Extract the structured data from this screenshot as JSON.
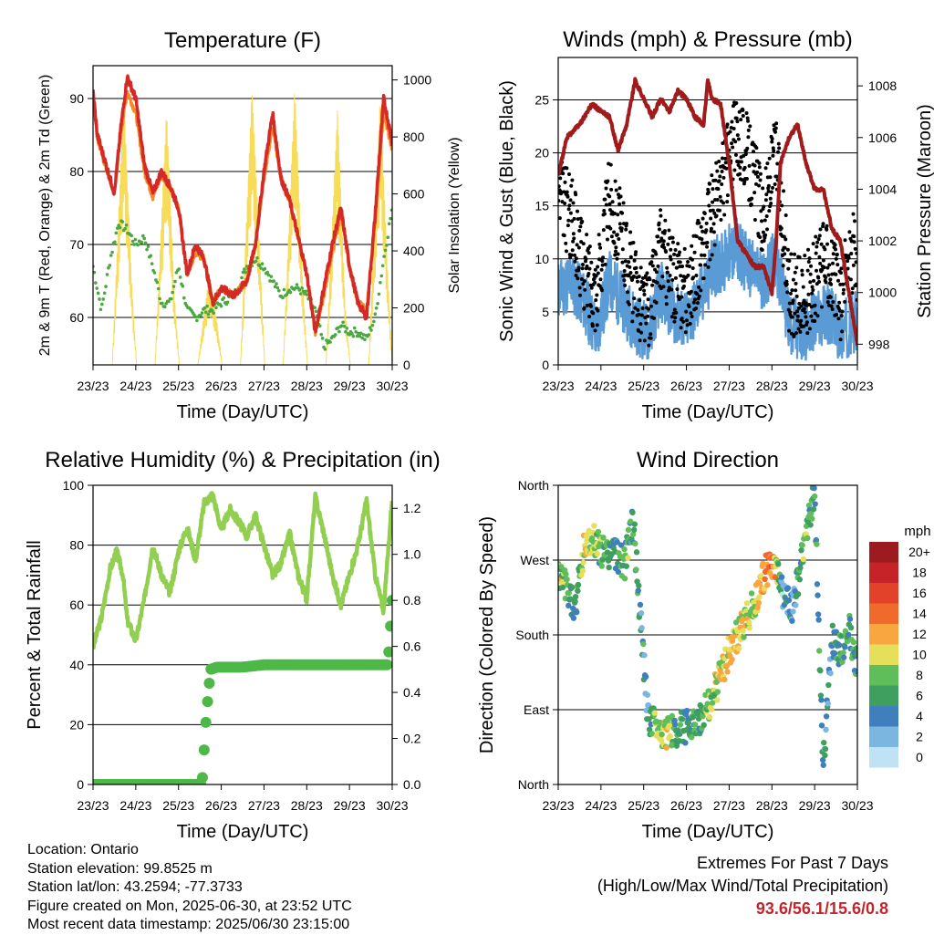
{
  "chart_data": [
    {
      "type": "line",
      "title": "Temperature (F)",
      "xlabel": "Time (Day/UTC)",
      "ylabel": "2m & 9m T (Red, Orange) & 2m Td (Green)",
      "ylabel_right": "Solar Insolation (Yellow)",
      "x_ticks": [
        "23/23",
        "24/23",
        "25/23",
        "26/23",
        "27/23",
        "28/23",
        "29/23",
        "30/23"
      ],
      "ylim": [
        53.5,
        94.5
      ],
      "y_ticks": [
        60,
        70,
        80,
        90
      ],
      "y2lim": [
        0,
        1050
      ],
      "y2_ticks": [
        0,
        200,
        400,
        600,
        800,
        1000
      ],
      "grid": "horizontal",
      "series": [
        {
          "role": "2m T",
          "axis": "left",
          "color": "#d42a26",
          "x": [
            0,
            0.1,
            0.3,
            0.5,
            0.65,
            0.8,
            1.0,
            1.2,
            1.4,
            1.6,
            1.8,
            2.0,
            2.2,
            2.4,
            2.6,
            2.8,
            3.0,
            3.3,
            3.6,
            3.8,
            4.0,
            4.2,
            4.4,
            4.6,
            4.8,
            5.0,
            5.2,
            5.4,
            5.6,
            5.8,
            6.0,
            6.2,
            6.4,
            6.6,
            6.8,
            7.0
          ],
          "values": [
            91,
            85,
            81,
            77,
            86,
            93,
            90,
            81,
            77,
            80,
            78,
            75,
            66,
            70,
            68,
            62,
            64,
            63,
            65,
            70,
            80,
            88,
            79,
            76,
            71,
            66,
            58,
            64,
            70,
            75,
            67,
            62,
            60,
            74,
            90,
            84
          ]
        },
        {
          "role": "9m T",
          "axis": "left",
          "color": "#f38a2a",
          "x": [
            0,
            0.1,
            0.3,
            0.5,
            0.65,
            0.8,
            1.0,
            1.2,
            1.4,
            1.6,
            1.8,
            2.0,
            2.2,
            2.4,
            2.6,
            2.8,
            3.0,
            3.3,
            3.6,
            3.8,
            4.0,
            4.2,
            4.4,
            4.6,
            4.8,
            5.0,
            5.2,
            5.4,
            5.6,
            5.8,
            6.0,
            6.2,
            6.4,
            6.6,
            6.8,
            7.0
          ],
          "values": [
            90.5,
            84.5,
            80.5,
            77,
            85,
            91,
            88,
            80,
            76.5,
            79.5,
            78,
            75,
            66,
            69,
            68,
            62,
            64,
            63,
            65,
            70,
            79,
            86,
            79,
            76,
            71,
            66,
            58,
            63,
            69,
            74,
            67,
            62,
            61,
            73,
            88,
            83
          ]
        },
        {
          "role": "2m Td",
          "axis": "left",
          "color": "#4aa83f",
          "x": [
            0,
            0.2,
            0.4,
            0.6,
            0.8,
            1.0,
            1.2,
            1.4,
            1.6,
            1.8,
            2.0,
            2.2,
            2.4,
            2.6,
            2.8,
            3.0,
            3.3,
            3.6,
            3.8,
            4.0,
            4.2,
            4.4,
            4.6,
            4.8,
            5.0,
            5.2,
            5.4,
            5.6,
            5.8,
            6.0,
            6.2,
            6.4,
            6.6,
            6.8,
            7.0
          ],
          "values": [
            67,
            61,
            68,
            73,
            72,
            70,
            71,
            67,
            62,
            62,
            67,
            61,
            60,
            61,
            61,
            62,
            63,
            67,
            68,
            67,
            65,
            63,
            64,
            64,
            63,
            61,
            56,
            57,
            59,
            58,
            58,
            57,
            60,
            68,
            75
          ]
        },
        {
          "role": "Solar Insolation",
          "axis": "right",
          "color": "#f7dc5a",
          "x": [
            0,
            0.45,
            0.72,
            0.9,
            1.02,
            1.3,
            1.45,
            1.72,
            1.9,
            2.02,
            2.3,
            2.45,
            2.72,
            2.9,
            3.02,
            3.3,
            3.45,
            3.72,
            3.9,
            4.02,
            4.3,
            4.45,
            4.72,
            4.9,
            5.02,
            5.3,
            5.45,
            5.72,
            5.9,
            6.02,
            6.3,
            6.45,
            6.72,
            6.9,
            7.0
          ],
          "values": [
            0,
            0,
            950,
            300,
            0,
            0,
            0,
            900,
            250,
            0,
            0,
            0,
            320,
            150,
            0,
            0,
            0,
            980,
            400,
            0,
            0,
            0,
            980,
            300,
            0,
            0,
            0,
            900,
            200,
            0,
            0,
            0,
            950,
            300,
            0
          ]
        }
      ]
    },
    {
      "type": "scatter",
      "title": "Winds (mph) & Pressure (mb)",
      "xlabel": "Time (Day/UTC)",
      "ylabel": "Sonic Wind & Gust (Blue, Black)",
      "ylabel_right": "Station Pressure (Maroon)",
      "x_ticks": [
        "23/23",
        "24/23",
        "25/23",
        "26/23",
        "27/23",
        "28/23",
        "29/23",
        "30/23"
      ],
      "ylim": [
        0,
        29
      ],
      "y_ticks": [
        0,
        5,
        10,
        15,
        20,
        25
      ],
      "y2lim": [
        997.2,
        1009.1
      ],
      "y2_ticks": [
        998,
        1000,
        1002,
        1004,
        1006,
        1008
      ],
      "grid": "horizontal",
      "series": [
        {
          "role": "Sonic Wind",
          "color": "#5b9bd5",
          "x": [
            0,
            0.3,
            0.6,
            0.9,
            1.2,
            1.5,
            1.8,
            2.1,
            2.4,
            2.7,
            3.0,
            3.3,
            3.6,
            3.9,
            4.2,
            4.5,
            4.8,
            5.1,
            5.4,
            5.7,
            6.0,
            6.3,
            6.6,
            6.9,
            7.0
          ],
          "values": [
            7,
            8,
            6,
            3,
            8,
            6,
            4,
            3,
            7,
            5,
            4,
            6,
            9,
            10,
            11,
            9,
            8,
            10,
            4,
            3,
            4,
            5,
            3,
            4,
            4
          ]
        },
        {
          "role": "Sonic Gust",
          "color": "#000000",
          "x": [
            0,
            0.3,
            0.6,
            0.9,
            1.2,
            1.5,
            1.8,
            2.1,
            2.4,
            2.7,
            3.0,
            3.3,
            3.6,
            3.9,
            4.2,
            4.5,
            4.8,
            5.1,
            5.4,
            5.7,
            6.0,
            6.3,
            6.6,
            6.9,
            7.0
          ],
          "values": [
            16,
            14,
            9,
            7,
            16,
            12,
            7,
            5,
            11,
            8,
            7,
            10,
            14,
            18,
            22,
            19,
            14,
            20,
            7,
            6,
            8,
            10,
            6,
            11,
            9
          ]
        },
        {
          "role": "Station Pressure",
          "color": "#a01b1b",
          "axis": "right",
          "x": [
            0,
            0.2,
            0.5,
            0.8,
            1.0,
            1.2,
            1.4,
            1.6,
            1.8,
            2.0,
            2.2,
            2.4,
            2.6,
            2.8,
            3.0,
            3.2,
            3.4,
            3.5,
            3.6,
            3.8,
            4.0,
            4.2,
            4.4,
            4.6,
            4.8,
            5.0,
            5.1,
            5.2,
            5.4,
            5.6,
            5.8,
            6.0,
            6.2,
            6.4,
            6.6,
            6.8,
            7.0
          ],
          "values": [
            1004.5,
            1006,
            1006.5,
            1007.3,
            1007,
            1006.8,
            1005.5,
            1006.5,
            1008.2,
            1007.5,
            1006.8,
            1007.5,
            1007,
            1007.8,
            1007.5,
            1006.8,
            1006.5,
            1008.2,
            1007.5,
            1007.3,
            1005,
            1002,
            1001.5,
            1001,
            1001,
            1000,
            1002,
            1005,
            1006,
            1006.5,
            1005,
            1004,
            1004,
            1002.5,
            1002,
            1000,
            998
          ]
        }
      ]
    },
    {
      "type": "line",
      "title": "Relative Humidity (%) & Precipitation (in)",
      "xlabel": "Time (Day/UTC)",
      "ylabel": "Percent & Total Rainfall",
      "x_ticks": [
        "23/23",
        "24/23",
        "25/23",
        "26/23",
        "27/23",
        "28/23",
        "29/23",
        "30/23"
      ],
      "ylim": [
        0,
        100
      ],
      "y_ticks": [
        0,
        20,
        40,
        60,
        80,
        100
      ],
      "y2lim": [
        0,
        1.3
      ],
      "y2_ticks": [
        "0.0",
        "0.2",
        "0.4",
        "0.6",
        "0.8",
        "1.0",
        "1.2"
      ],
      "grid": "horizontal",
      "series": [
        {
          "role": "Relative Humidity",
          "color": "#92cf50",
          "x": [
            0,
            0.2,
            0.4,
            0.55,
            0.7,
            0.8,
            1.0,
            1.2,
            1.4,
            1.6,
            1.8,
            2.0,
            2.2,
            2.4,
            2.6,
            2.8,
            3.0,
            3.2,
            3.4,
            3.6,
            3.8,
            4.0,
            4.2,
            4.4,
            4.6,
            4.8,
            5.0,
            5.2,
            5.4,
            5.6,
            5.8,
            6.0,
            6.2,
            6.4,
            6.6,
            6.8,
            7.0
          ],
          "values": [
            46,
            56,
            72,
            78,
            70,
            55,
            48,
            62,
            80,
            70,
            64,
            78,
            86,
            75,
            94,
            97,
            85,
            92,
            88,
            83,
            90,
            80,
            70,
            74,
            84,
            70,
            62,
            96,
            84,
            70,
            60,
            70,
            80,
            95,
            70,
            58,
            96
          ]
        },
        {
          "role": "Total Precipitation",
          "color": "#4db848",
          "axis": "right",
          "x": [
            0,
            1.0,
            2.0,
            2.55,
            2.65,
            2.75,
            2.9,
            3.5,
            4.0,
            5.0,
            6.0,
            6.9,
            7.0
          ],
          "values": [
            0,
            0,
            0,
            0,
            0.3,
            0.5,
            0.51,
            0.51,
            0.52,
            0.52,
            0.52,
            0.52,
            0.8
          ]
        }
      ]
    },
    {
      "type": "scatter",
      "title": "Wind Direction",
      "xlabel": "Time (Day/UTC)",
      "ylabel": "Direction (Colored By Speed)",
      "x_ticks": [
        "23/23",
        "24/23",
        "25/23",
        "26/23",
        "27/23",
        "28/23",
        "29/23",
        "30/23"
      ],
      "y_ticks": [
        "North",
        "East",
        "South",
        "West",
        "North"
      ],
      "ylim": [
        0,
        360
      ],
      "grid": "horizontal",
      "colorbar": {
        "title": "mph",
        "labels": [
          "20+",
          "18",
          "16",
          "14",
          "12",
          "10",
          "8",
          "6",
          "4",
          "2",
          "0"
        ],
        "colors": [
          "#9b1b1e",
          "#c62328",
          "#e2412a",
          "#f06a2c",
          "#f9a640",
          "#e5df5a",
          "#5fbd5a",
          "#3e9f5f",
          "#3f7fbd",
          "#7bb6e1",
          "#bfe2f5"
        ]
      },
      "x": [
        0.05,
        0.2,
        0.4,
        0.6,
        0.85,
        1.1,
        1.3,
        1.55,
        1.75,
        2.1,
        2.3,
        2.5,
        2.75,
        3.0,
        3.3,
        3.55,
        3.8,
        4.0,
        4.3,
        4.6,
        4.8,
        5.0,
        5.25,
        5.5,
        5.75,
        6.0,
        6.2,
        6.4,
        6.6,
        6.8,
        6.95
      ],
      "values": [
        250,
        235,
        210,
        285,
        295,
        275,
        280,
        265,
        320,
        80,
        70,
        60,
        65,
        70,
        80,
        100,
        130,
        160,
        190,
        220,
        250,
        270,
        230,
        210,
        290,
        350,
        20,
        175,
        160,
        190,
        150
      ],
      "speeds": [
        9,
        7,
        5,
        11,
        8,
        6,
        5,
        7,
        6,
        4,
        9,
        10,
        7,
        5,
        6,
        8,
        10,
        11,
        10,
        9,
        12,
        14,
        3,
        4,
        8,
        6,
        5,
        4,
        6,
        7,
        6
      ]
    }
  ],
  "footer": {
    "location": "Location: Ontario",
    "elevation": "Station elevation: 99.8525 m",
    "latlon": "Station lat/lon: 43.2594; -77.3733",
    "created": "Figure created on Mon, 2025-06-30, at 23:52 UTC",
    "recent": "Most recent data timestamp: 2025/06/30 23:15:00",
    "extremes_title": "Extremes For Past 7 Days",
    "extremes_sub": "(High/Low/Max Wind/Total Precipitation)",
    "extremes_value": "93.6/56.1/15.6/0.8"
  }
}
